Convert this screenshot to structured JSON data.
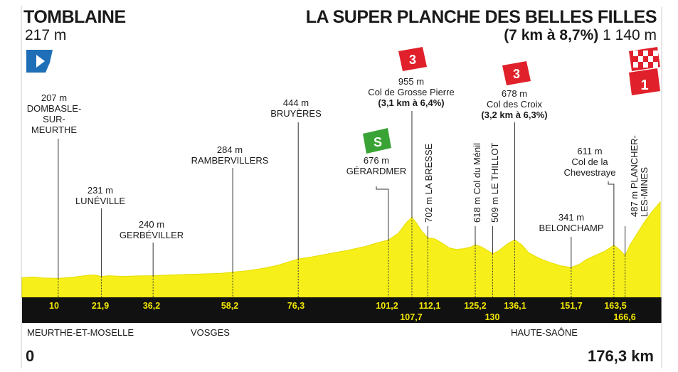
{
  "start": {
    "name": "TOMBLAINE",
    "altitude": "217 m"
  },
  "finish": {
    "name": "LA SUPER PLANCHE DES BELLES FILLES",
    "climb": "(7 km à 8,7%)",
    "altitude": "1 140 m"
  },
  "regions": [
    "MEURTHE-ET-MOSELLE",
    "VOSGES",
    "HAUTE-SAÔNE"
  ],
  "distance_start": "0",
  "distance_total": "176,3 km",
  "colors": {
    "profile": "#f7ef1a",
    "profile_dark": "#e6dd00",
    "bar": "#111111",
    "km_text": "#f2e600",
    "climb_red": "#e0202a",
    "sprint_green": "#3aa335",
    "start_flag": "#1f6fb8"
  },
  "icons": [
    "start-flag-icon",
    "finish-flag-icon",
    "climb-category-icon",
    "sprint-icon"
  ],
  "points": [
    {
      "id": "dombasle",
      "km_label": "10",
      "altitude": "207 m",
      "name": [
        "DOMBASLE-",
        "SUR-",
        "MEURTHE"
      ]
    },
    {
      "id": "luneville",
      "km_label": "21,9",
      "altitude": "231 m",
      "name": [
        "LUNÉVILLE"
      ]
    },
    {
      "id": "gerbeviller",
      "km_label": "36,2",
      "altitude": "240 m",
      "name": [
        "GERBÉVILLER"
      ]
    },
    {
      "id": "rambervillers",
      "km_label": "58,2",
      "altitude": "284 m",
      "name": [
        "RAMBERVILLERS"
      ]
    },
    {
      "id": "bruyeres",
      "km_label": "76,3",
      "altitude": "444 m",
      "name": [
        "BRUYÈRES"
      ]
    },
    {
      "id": "gerardmer",
      "km_label": "101,2",
      "altitude": "676 m",
      "name": [
        "GÉRARDMER"
      ],
      "sprint_label": "S"
    },
    {
      "id": "grosse-pierre",
      "km_label": "107,7",
      "altitude": "955 m",
      "name": [
        "Col de Grosse Pierre"
      ],
      "climb": "(3,1 km à 6,4%)",
      "category": "3"
    },
    {
      "id": "la-bresse",
      "km_label": "112,1",
      "text": "702 m LA BRESSE"
    },
    {
      "id": "col-du-menil",
      "km_label": "125,2",
      "text": "618 m Col du Ménil"
    },
    {
      "id": "le-thillot",
      "km_label": "130",
      "text": "509 m LE THILLOT"
    },
    {
      "id": "col-des-croix",
      "km_label": "136,1",
      "altitude": "678 m",
      "name": [
        "Col des Croix"
      ],
      "climb": "(3,2 km à 6,3%)",
      "category": "3"
    },
    {
      "id": "belonchamp",
      "km_label": "151,7",
      "altitude": "341 m",
      "name": [
        "BELONCHAMP"
      ]
    },
    {
      "id": "chevestraye",
      "km_label": "163,5",
      "altitude": "611 m",
      "name": [
        "Col de la",
        "Chevestraye"
      ]
    },
    {
      "id": "plancher",
      "km_label": "166,6",
      "text_lines": [
        "487 m PLANCHER-",
        "LES-MINES"
      ]
    }
  ],
  "finish_category": "1",
  "chart_data": {
    "type": "area",
    "xlabel": "",
    "ylabel": "",
    "xlim": [
      0,
      176.3
    ],
    "x": [
      0,
      3,
      6,
      10,
      14,
      18,
      20,
      21.9,
      24,
      28,
      32,
      36.2,
      40,
      45,
      50,
      55,
      58.2,
      62,
      66,
      70,
      73,
      76.3,
      80,
      85,
      90,
      95,
      98,
      101.2,
      104,
      106,
      107.7,
      109,
      110.5,
      112.1,
      114,
      116,
      118,
      120,
      122,
      124,
      125.2,
      127,
      128.5,
      130,
      131.5,
      133,
      134.5,
      136.1,
      138,
      140,
      143,
      146,
      149,
      151.7,
      154,
      156,
      158,
      161,
      163.5,
      165,
      166.6,
      168,
      170,
      172,
      174,
      176.3
    ],
    "y": [
      217,
      225,
      212,
      207,
      222,
      245,
      250,
      231,
      240,
      232,
      238,
      240,
      248,
      255,
      262,
      270,
      284,
      300,
      325,
      360,
      400,
      444,
      470,
      510,
      550,
      600,
      640,
      676,
      760,
      880,
      955,
      880,
      780,
      702,
      690,
      640,
      580,
      560,
      570,
      590,
      618,
      590,
      550,
      509,
      540,
      590,
      640,
      678,
      620,
      520,
      450,
      400,
      360,
      341,
      380,
      440,
      480,
      540,
      611,
      560,
      487,
      620,
      760,
      900,
      1020,
      1140
    ],
    "ylim": [
      150,
      1150
    ]
  }
}
